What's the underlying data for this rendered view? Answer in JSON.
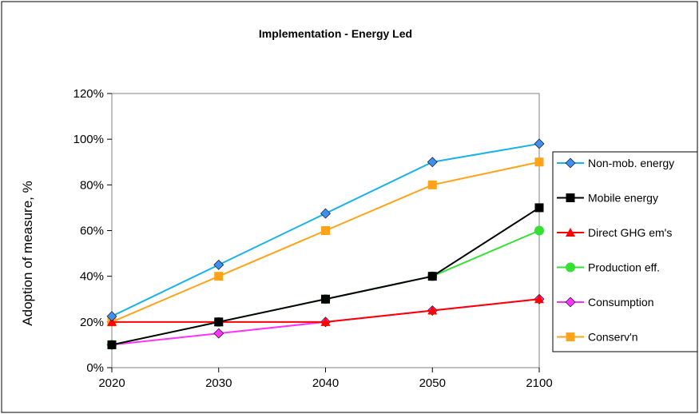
{
  "chart_data": {
    "type": "line",
    "title": "Implementation - Energy Led",
    "xlabel": "",
    "ylabel": "Adoption of measure, %",
    "categories": [
      "2020",
      "2030",
      "2040",
      "2050",
      "2100"
    ],
    "ylim": [
      0,
      120
    ],
    "yticks": [
      "0%",
      "20%",
      "40%",
      "60%",
      "80%",
      "100%",
      "120%"
    ],
    "grid": false,
    "legend_position": "right",
    "series": [
      {
        "name": "Non-mob. energy",
        "values": [
          22.5,
          45,
          67.5,
          90,
          98
        ],
        "color": "#1AB2E8",
        "marker": "diamond",
        "marker_color": "#3F8EF0"
      },
      {
        "name": "Mobile energy",
        "values": [
          10,
          20,
          30,
          40,
          70
        ],
        "color": "#000000",
        "marker": "square",
        "marker_color": "#000000"
      },
      {
        "name": "Direct GHG em's",
        "values": [
          20,
          20,
          20,
          25,
          30
        ],
        "color": "#FF0000",
        "marker": "triangle",
        "marker_color": "#FF0000"
      },
      {
        "name": "Production eff.",
        "values": [
          10,
          20,
          30,
          40,
          60
        ],
        "color": "#33E033",
        "marker": "circle",
        "marker_color": "#33E033"
      },
      {
        "name": "Consumption",
        "values": [
          10,
          15,
          20,
          25,
          30
        ],
        "color": "#FF33FF",
        "marker": "diamond",
        "marker_color": "#FF33FF"
      },
      {
        "name": "Conserv'n",
        "values": [
          20,
          40,
          60,
          80,
          90
        ],
        "color": "#FFA31A",
        "marker": "square",
        "marker_color": "#FFA31A"
      }
    ]
  }
}
